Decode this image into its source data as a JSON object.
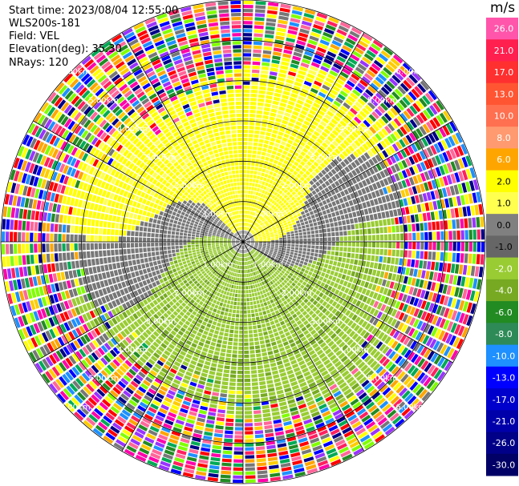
{
  "header": {
    "start_time": "Start time: 2023/08/04 12:55:00",
    "site": "WLS200s-181",
    "field": "Field: VEL",
    "elevation": "Elevation(deg): 35.30",
    "nrays": "NRays: 120"
  },
  "chart_data": {
    "type": "heatmap",
    "title": "",
    "field": "VEL",
    "projection": "polar (PPI)",
    "nrays": 120,
    "range_rings_km": [
      1,
      2,
      3,
      4,
      5,
      6
    ],
    "range_ring_labels": [
      "1.00km",
      "2.00km",
      "3.00km",
      "4.00km",
      "5.00km",
      "6.00km"
    ],
    "colorbar": {
      "unit": "m/s",
      "ticks": [
        26.0,
        21.0,
        17.0,
        13.0,
        10.0,
        8.0,
        6.0,
        2.0,
        1.0,
        0.0,
        -1.0,
        -2.0,
        -4.0,
        -6.0,
        -8.0,
        -10.0,
        -13.0,
        -17.0,
        -21.0,
        -26.0,
        -30.0
      ],
      "tick_labels": [
        "26.0",
        "21.0",
        "17.0",
        "13.0",
        "10.0",
        "8.0",
        "6.0",
        "2.0",
        "1.0",
        "0.0",
        "-1.0",
        "-2.0",
        "-4.0",
        "-6.0",
        "-8.0",
        "-10.0",
        "-13.0",
        "-17.0",
        "-21.0",
        "-26.0",
        "-30.0"
      ],
      "colors": [
        "#ff55aa",
        "#ff2050",
        "#ff3030",
        "#ff5533",
        "#ff7050",
        "#ff9a70",
        "#ffa500",
        "#ffff00",
        "#ffff50",
        "#808080",
        "#666666",
        "#99cc33",
        "#77aa22",
        "#228b22",
        "#2e8b57",
        "#1e90ff",
        "#0000ff",
        "#0000cc",
        "#0000aa",
        "#000088",
        "#000066"
      ]
    },
    "pattern": {
      "inner_positive_region": "north half, yellow (~+2 m/s)",
      "inner_negative_region": "south half, green (~-2 m/s)",
      "zero_band": "grey spiral between regions",
      "outer_noise_range_km": [
        4.3,
        6.0
      ]
    }
  }
}
